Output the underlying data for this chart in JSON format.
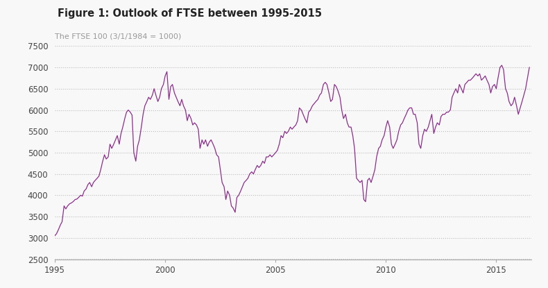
{
  "title": "Figure 1: Outlook of FTSE between 1995-2015",
  "subtitle": "The FTSE 100 (3/1/1984 = 1000)",
  "line_color": "#8B2E8B",
  "background_color": "#f8f8f8",
  "xlim": [
    1995.0,
    2016.6
  ],
  "ylim": [
    2500,
    7500
  ],
  "yticks": [
    2500,
    3000,
    3500,
    4000,
    4500,
    5000,
    5500,
    6000,
    6500,
    7000,
    7500
  ],
  "xticks": [
    1995,
    2000,
    2005,
    2010,
    2015
  ],
  "grid_color": "#bbbbbb",
  "title_color": "#222222",
  "subtitle_color": "#999999",
  "ftse_data": [
    [
      1995.0,
      3050
    ],
    [
      1995.08,
      3100
    ],
    [
      1995.17,
      3200
    ],
    [
      1995.25,
      3300
    ],
    [
      1995.33,
      3380
    ],
    [
      1995.42,
      3750
    ],
    [
      1995.5,
      3680
    ],
    [
      1995.58,
      3750
    ],
    [
      1995.67,
      3800
    ],
    [
      1995.75,
      3820
    ],
    [
      1995.83,
      3850
    ],
    [
      1995.92,
      3900
    ],
    [
      1996.0,
      3910
    ],
    [
      1996.08,
      3950
    ],
    [
      1996.17,
      4000
    ],
    [
      1996.25,
      3980
    ],
    [
      1996.33,
      4100
    ],
    [
      1996.42,
      4150
    ],
    [
      1996.5,
      4250
    ],
    [
      1996.58,
      4300
    ],
    [
      1996.67,
      4200
    ],
    [
      1996.75,
      4300
    ],
    [
      1996.83,
      4350
    ],
    [
      1996.92,
      4400
    ],
    [
      1997.0,
      4450
    ],
    [
      1997.08,
      4600
    ],
    [
      1997.17,
      4800
    ],
    [
      1997.25,
      4950
    ],
    [
      1997.33,
      4850
    ],
    [
      1997.42,
      4900
    ],
    [
      1997.5,
      5200
    ],
    [
      1997.58,
      5100
    ],
    [
      1997.67,
      5200
    ],
    [
      1997.75,
      5300
    ],
    [
      1997.83,
      5400
    ],
    [
      1997.92,
      5200
    ],
    [
      1998.0,
      5450
    ],
    [
      1998.08,
      5600
    ],
    [
      1998.17,
      5800
    ],
    [
      1998.25,
      5950
    ],
    [
      1998.33,
      6000
    ],
    [
      1998.42,
      5950
    ],
    [
      1998.5,
      5880
    ],
    [
      1998.58,
      5000
    ],
    [
      1998.67,
      4800
    ],
    [
      1998.75,
      5150
    ],
    [
      1998.83,
      5300
    ],
    [
      1998.92,
      5600
    ],
    [
      1999.0,
      5900
    ],
    [
      1999.08,
      6100
    ],
    [
      1999.17,
      6200
    ],
    [
      1999.25,
      6300
    ],
    [
      1999.33,
      6250
    ],
    [
      1999.42,
      6350
    ],
    [
      1999.5,
      6500
    ],
    [
      1999.58,
      6350
    ],
    [
      1999.67,
      6200
    ],
    [
      1999.75,
      6300
    ],
    [
      1999.83,
      6500
    ],
    [
      1999.92,
      6600
    ],
    [
      2000.0,
      6800
    ],
    [
      2000.08,
      6900
    ],
    [
      2000.17,
      6250
    ],
    [
      2000.25,
      6550
    ],
    [
      2000.33,
      6600
    ],
    [
      2000.42,
      6400
    ],
    [
      2000.5,
      6300
    ],
    [
      2000.58,
      6200
    ],
    [
      2000.67,
      6100
    ],
    [
      2000.75,
      6250
    ],
    [
      2000.83,
      6100
    ],
    [
      2000.92,
      6000
    ],
    [
      2001.0,
      5750
    ],
    [
      2001.08,
      5900
    ],
    [
      2001.17,
      5800
    ],
    [
      2001.25,
      5650
    ],
    [
      2001.33,
      5700
    ],
    [
      2001.42,
      5650
    ],
    [
      2001.5,
      5550
    ],
    [
      2001.58,
      5100
    ],
    [
      2001.67,
      5300
    ],
    [
      2001.75,
      5200
    ],
    [
      2001.83,
      5300
    ],
    [
      2001.92,
      5150
    ],
    [
      2002.0,
      5250
    ],
    [
      2002.08,
      5300
    ],
    [
      2002.17,
      5200
    ],
    [
      2002.25,
      5100
    ],
    [
      2002.33,
      4950
    ],
    [
      2002.42,
      4900
    ],
    [
      2002.5,
      4600
    ],
    [
      2002.58,
      4300
    ],
    [
      2002.67,
      4200
    ],
    [
      2002.75,
      3900
    ],
    [
      2002.83,
      4100
    ],
    [
      2002.92,
      4000
    ],
    [
      2003.0,
      3750
    ],
    [
      2003.08,
      3700
    ],
    [
      2003.17,
      3600
    ],
    [
      2003.25,
      3950
    ],
    [
      2003.33,
      4000
    ],
    [
      2003.42,
      4100
    ],
    [
      2003.5,
      4200
    ],
    [
      2003.58,
      4300
    ],
    [
      2003.67,
      4350
    ],
    [
      2003.75,
      4400
    ],
    [
      2003.83,
      4500
    ],
    [
      2003.92,
      4550
    ],
    [
      2004.0,
      4500
    ],
    [
      2004.08,
      4600
    ],
    [
      2004.17,
      4700
    ],
    [
      2004.25,
      4650
    ],
    [
      2004.33,
      4700
    ],
    [
      2004.42,
      4800
    ],
    [
      2004.5,
      4750
    ],
    [
      2004.58,
      4900
    ],
    [
      2004.67,
      4900
    ],
    [
      2004.75,
      4950
    ],
    [
      2004.83,
      4900
    ],
    [
      2004.92,
      4950
    ],
    [
      2005.0,
      5000
    ],
    [
      2005.08,
      5050
    ],
    [
      2005.17,
      5200
    ],
    [
      2005.25,
      5400
    ],
    [
      2005.33,
      5350
    ],
    [
      2005.42,
      5500
    ],
    [
      2005.5,
      5450
    ],
    [
      2005.58,
      5500
    ],
    [
      2005.67,
      5600
    ],
    [
      2005.75,
      5550
    ],
    [
      2005.83,
      5600
    ],
    [
      2005.92,
      5650
    ],
    [
      2006.0,
      5750
    ],
    [
      2006.08,
      6050
    ],
    [
      2006.17,
      6000
    ],
    [
      2006.25,
      5900
    ],
    [
      2006.33,
      5800
    ],
    [
      2006.42,
      5700
    ],
    [
      2006.5,
      5950
    ],
    [
      2006.58,
      6000
    ],
    [
      2006.67,
      6100
    ],
    [
      2006.75,
      6150
    ],
    [
      2006.83,
      6200
    ],
    [
      2006.92,
      6250
    ],
    [
      2007.0,
      6350
    ],
    [
      2007.08,
      6400
    ],
    [
      2007.17,
      6600
    ],
    [
      2007.25,
      6650
    ],
    [
      2007.33,
      6600
    ],
    [
      2007.42,
      6400
    ],
    [
      2007.5,
      6200
    ],
    [
      2007.58,
      6250
    ],
    [
      2007.67,
      6600
    ],
    [
      2007.75,
      6550
    ],
    [
      2007.83,
      6450
    ],
    [
      2007.92,
      6300
    ],
    [
      2008.0,
      6000
    ],
    [
      2008.08,
      5800
    ],
    [
      2008.17,
      5900
    ],
    [
      2008.25,
      5700
    ],
    [
      2008.33,
      5600
    ],
    [
      2008.42,
      5600
    ],
    [
      2008.5,
      5400
    ],
    [
      2008.58,
      5100
    ],
    [
      2008.67,
      4400
    ],
    [
      2008.75,
      4350
    ],
    [
      2008.83,
      4300
    ],
    [
      2008.92,
      4350
    ],
    [
      2009.0,
      3900
    ],
    [
      2009.08,
      3850
    ],
    [
      2009.17,
      4350
    ],
    [
      2009.25,
      4400
    ],
    [
      2009.33,
      4300
    ],
    [
      2009.42,
      4450
    ],
    [
      2009.5,
      4600
    ],
    [
      2009.58,
      4900
    ],
    [
      2009.67,
      5100
    ],
    [
      2009.75,
      5150
    ],
    [
      2009.83,
      5300
    ],
    [
      2009.92,
      5400
    ],
    [
      2010.0,
      5600
    ],
    [
      2010.08,
      5750
    ],
    [
      2010.17,
      5600
    ],
    [
      2010.25,
      5200
    ],
    [
      2010.33,
      5100
    ],
    [
      2010.42,
      5200
    ],
    [
      2010.5,
      5300
    ],
    [
      2010.58,
      5500
    ],
    [
      2010.67,
      5650
    ],
    [
      2010.75,
      5700
    ],
    [
      2010.83,
      5800
    ],
    [
      2010.92,
      5900
    ],
    [
      2011.0,
      6000
    ],
    [
      2011.08,
      6050
    ],
    [
      2011.17,
      6050
    ],
    [
      2011.25,
      5900
    ],
    [
      2011.33,
      5900
    ],
    [
      2011.42,
      5700
    ],
    [
      2011.5,
      5200
    ],
    [
      2011.58,
      5100
    ],
    [
      2011.67,
      5400
    ],
    [
      2011.75,
      5550
    ],
    [
      2011.83,
      5500
    ],
    [
      2011.92,
      5600
    ],
    [
      2012.0,
      5750
    ],
    [
      2012.08,
      5900
    ],
    [
      2012.17,
      5450
    ],
    [
      2012.25,
      5600
    ],
    [
      2012.33,
      5700
    ],
    [
      2012.42,
      5650
    ],
    [
      2012.5,
      5850
    ],
    [
      2012.58,
      5900
    ],
    [
      2012.67,
      5900
    ],
    [
      2012.75,
      5950
    ],
    [
      2012.83,
      5950
    ],
    [
      2012.92,
      6000
    ],
    [
      2013.0,
      6300
    ],
    [
      2013.08,
      6400
    ],
    [
      2013.17,
      6500
    ],
    [
      2013.25,
      6400
    ],
    [
      2013.33,
      6600
    ],
    [
      2013.42,
      6500
    ],
    [
      2013.5,
      6400
    ],
    [
      2013.58,
      6600
    ],
    [
      2013.67,
      6650
    ],
    [
      2013.75,
      6700
    ],
    [
      2013.83,
      6700
    ],
    [
      2013.92,
      6750
    ],
    [
      2014.0,
      6800
    ],
    [
      2014.08,
      6850
    ],
    [
      2014.17,
      6800
    ],
    [
      2014.25,
      6850
    ],
    [
      2014.33,
      6700
    ],
    [
      2014.42,
      6750
    ],
    [
      2014.5,
      6800
    ],
    [
      2014.58,
      6700
    ],
    [
      2014.67,
      6600
    ],
    [
      2014.75,
      6400
    ],
    [
      2014.83,
      6550
    ],
    [
      2014.92,
      6600
    ],
    [
      2015.0,
      6500
    ],
    [
      2015.08,
      6750
    ],
    [
      2015.17,
      7000
    ],
    [
      2015.25,
      7050
    ],
    [
      2015.33,
      6950
    ],
    [
      2015.42,
      6500
    ],
    [
      2015.5,
      6400
    ],
    [
      2015.58,
      6200
    ],
    [
      2015.67,
      6100
    ],
    [
      2015.75,
      6150
    ],
    [
      2015.83,
      6300
    ],
    [
      2015.92,
      6100
    ],
    [
      2016.0,
      5900
    ],
    [
      2016.17,
      6200
    ],
    [
      2016.33,
      6500
    ],
    [
      2016.5,
      7000
    ]
  ]
}
